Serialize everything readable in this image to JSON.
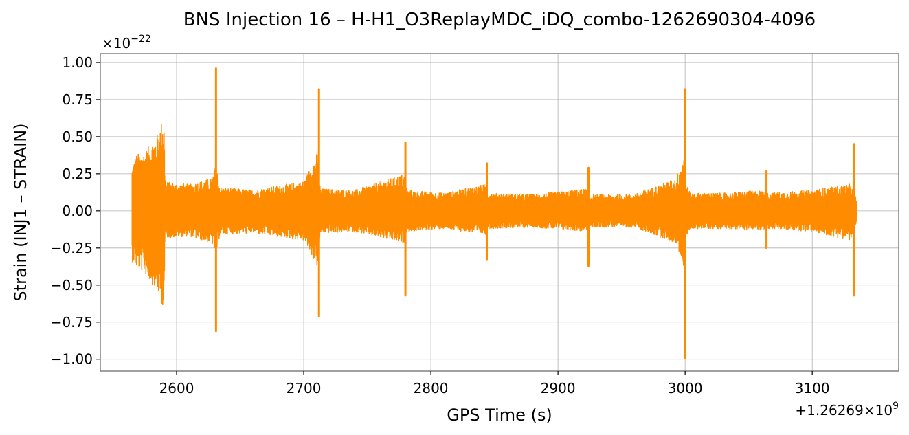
{
  "chart_data": {
    "type": "line",
    "title": "BNS Injection 16 – H-H1_O3ReplayMDC_iDQ_combo-1262690304-4096",
    "xlabel": "GPS Time (s)",
    "ylabel": "Strain (INJ1 – STRAIN)",
    "x_offset_label": "+1.26269×10",
    "x_offset_exponent": "9",
    "y_scale_label": "×10",
    "y_scale_exponent": "−22",
    "xlim": [
      2540,
      3168
    ],
    "ylim": [
      -1.08,
      1.06
    ],
    "x_ticks": [
      2600,
      2700,
      2800,
      2900,
      3000,
      3100
    ],
    "x_tick_labels": [
      "2600",
      "2700",
      "2800",
      "2900",
      "3000",
      "3100"
    ],
    "y_ticks": [
      1.0,
      0.75,
      0.5,
      0.25,
      0.0,
      -0.25,
      -0.5,
      -0.75,
      -1.0
    ],
    "y_tick_labels": [
      "1.00",
      "0.75",
      "0.50",
      "0.25",
      "0.00",
      "−0.25",
      "−0.50",
      "−0.75",
      "−1.00"
    ],
    "grid": true,
    "series": [
      {
        "color": "#ff8c00",
        "x_range": [
          2565,
          3135
        ],
        "envelope": {
          "x": [
            2565,
            2568,
            2575,
            2585,
            2590,
            2591,
            2595,
            2610,
            2628,
            2631,
            2634,
            2660,
            2700,
            2711,
            2713,
            2740,
            2779,
            2781,
            2810,
            2843,
            2845,
            2880,
            2923,
            2925,
            2960,
            2993,
            2999,
            3001,
            3004,
            3030,
            3063,
            3065,
            3100,
            3130,
            3135
          ],
          "upper": [
            0.3,
            0.38,
            0.4,
            0.52,
            0.66,
            0.2,
            0.19,
            0.18,
            0.22,
            0.35,
            0.16,
            0.14,
            0.2,
            0.4,
            0.15,
            0.14,
            0.25,
            0.14,
            0.12,
            0.18,
            0.12,
            0.11,
            0.15,
            0.11,
            0.11,
            0.22,
            0.4,
            0.18,
            0.12,
            0.12,
            0.14,
            0.12,
            0.14,
            0.18,
            0.08
          ],
          "lower": [
            -0.34,
            -0.38,
            -0.42,
            -0.55,
            -0.66,
            -0.18,
            -0.18,
            -0.17,
            -0.22,
            -0.3,
            -0.16,
            -0.15,
            -0.2,
            -0.38,
            -0.15,
            -0.14,
            -0.22,
            -0.14,
            -0.12,
            -0.16,
            -0.12,
            -0.11,
            -0.14,
            -0.11,
            -0.11,
            -0.22,
            -0.38,
            -0.18,
            -0.12,
            -0.12,
            -0.13,
            -0.12,
            -0.14,
            -0.2,
            -0.08
          ]
        },
        "spikes": [
          {
            "x": 2631,
            "max": 0.96,
            "min": -0.81
          },
          {
            "x": 2712,
            "max": 0.82,
            "min": -0.71
          },
          {
            "x": 2780,
            "max": 0.46,
            "min": -0.57
          },
          {
            "x": 2844,
            "max": 0.32,
            "min": -0.33
          },
          {
            "x": 2924,
            "max": 0.29,
            "min": -0.37
          },
          {
            "x": 3000,
            "max": 0.82,
            "min": -0.99
          },
          {
            "x": 3064,
            "max": 0.27,
            "min": -0.25
          },
          {
            "x": 3133,
            "max": 0.45,
            "min": -0.57
          }
        ]
      }
    ]
  }
}
